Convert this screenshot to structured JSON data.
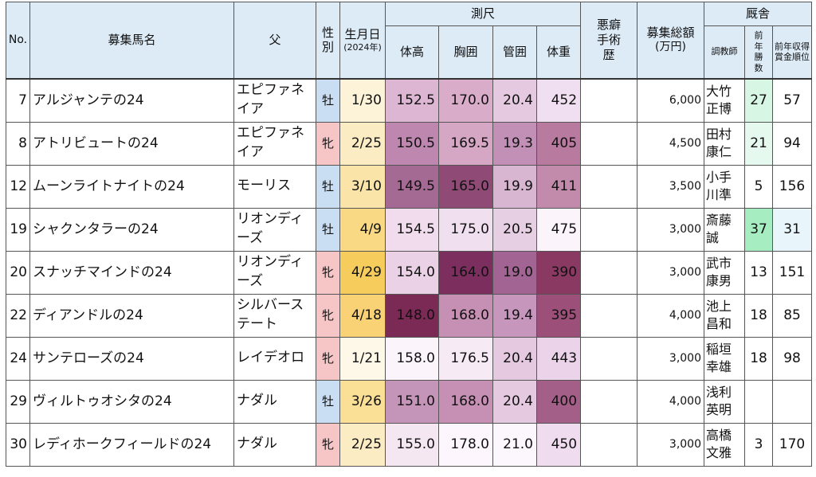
{
  "headers": {
    "no": "No.",
    "name": "募集馬名",
    "sire": "父",
    "sex": "性別",
    "birth": "生月日",
    "birth_sub": "(2024年)",
    "measure": "測尺",
    "height": "体高",
    "girth": "胸囲",
    "cannon": "管囲",
    "weight": "体重",
    "surgery": "悪癖手術歴",
    "fee": "募集総額",
    "fee_unit": "(万円)",
    "stable": "厩舎",
    "trainer": "調教師",
    "wins": "前年勝数",
    "rank": "前年収得賞金順位"
  },
  "colors": {
    "male_bg": "#c9def2",
    "female_bg": "#f6c6c7",
    "header_bg": "#ddebf7"
  },
  "rows": [
    {
      "no": "7",
      "name": "アルジャンテの24",
      "sire": "エピファネイア",
      "sex": "牡",
      "sex_type": "male",
      "birth": "1/30",
      "birth_bg": "#fdf3d8",
      "height": "152.5",
      "height_bg": "#dcb6d3",
      "girth": "170.0",
      "girth_bg": "#d9acc9",
      "cannon": "20.4",
      "cannon_bg": "#e4c9e0",
      "weight": "452",
      "weight_bg": "#f0dff0",
      "surgery": "",
      "fee": "6,000",
      "trainer": "大竹正博",
      "wins": "27",
      "wins_bg": "#d7f6e3",
      "rank": "57",
      "rank_bg": "#ffffff"
    },
    {
      "no": "8",
      "name": "アトリビュートの24",
      "sire": "エピファネイア",
      "sex": "牝",
      "sex_type": "female",
      "birth": "2/25",
      "birth_bg": "#fcecc3",
      "height": "150.5",
      "height_bg": "#bd87b0",
      "girth": "169.5",
      "girth_bg": "#d6a6c5",
      "cannon": "19.3",
      "cannon_bg": "#c290b6",
      "weight": "405",
      "weight_bg": "#b87a9f",
      "surgery": "",
      "fee": "4,500",
      "trainer": "田村康仁",
      "wins": "21",
      "wins_bg": "#e6f9ee",
      "rank": "94",
      "rank_bg": "#ffffff"
    },
    {
      "no": "12",
      "name": "ムーンライトナイトの24",
      "sire": "モーリス",
      "sex": "牡",
      "sex_type": "male",
      "birth": "3/10",
      "birth_bg": "#fbe4a8",
      "height": "149.5",
      "height_bg": "#a56a93",
      "girth": "165.0",
      "girth_bg": "#8f4b76",
      "cannon": "19.9",
      "cannon_bg": "#d8b6d2",
      "weight": "411",
      "weight_bg": "#c28aab",
      "surgery": "",
      "fee": "3,500",
      "trainer": "小手川準",
      "wins": "5",
      "wins_bg": "#ffffff",
      "rank": "156",
      "rank_bg": "#ffffff"
    },
    {
      "no": "19",
      "name": "シャクンタラーの24",
      "sire": "リオンディーズ",
      "sex": "牡",
      "sex_type": "male",
      "birth": "4/9",
      "birth_bg": "#f9d983",
      "height": "154.5",
      "height_bg": "#f0dcec",
      "girth": "175.0",
      "girth_bg": "#f0e0ef",
      "cannon": "20.5",
      "cannon_bg": "#e7cfe3",
      "weight": "475",
      "weight_bg": "#fbf4fb",
      "surgery": "",
      "fee": "3,000",
      "trainer": "斎藤誠",
      "wins": "37",
      "wins_bg": "#a7edc2",
      "rank": "31",
      "rank_bg": "#e8f6fc"
    },
    {
      "no": "20",
      "name": "スナッチマインドの24",
      "sire": "リオンディーズ",
      "sex": "牝",
      "sex_type": "female",
      "birth": "4/29",
      "birth_bg": "#f6cc5d",
      "height": "154.0",
      "height_bg": "#ead1e5",
      "girth": "164.0",
      "girth_bg": "#7c2f5f",
      "cannon": "19.0",
      "cannon_bg": "#a16493",
      "weight": "390",
      "weight_bg": "#8a3a62",
      "surgery": "",
      "fee": "3,000",
      "trainer": "武市康男",
      "wins": "13",
      "wins_bg": "#ffffff",
      "rank": "151",
      "rank_bg": "#ffffff"
    },
    {
      "no": "22",
      "name": "ディアンドルの24",
      "sire": "シルバーステート",
      "sex": "牝",
      "sex_type": "female",
      "birth": "4/18",
      "birth_bg": "#f8d274",
      "height": "148.0",
      "height_bg": "#7a2a55",
      "girth": "168.0",
      "girth_bg": "#c690b4",
      "cannon": "19.4",
      "cannon_bg": "#c696bc",
      "weight": "395",
      "weight_bg": "#9c4f78",
      "surgery": "",
      "fee": "4,000",
      "trainer": "池上昌和",
      "wins": "18",
      "wins_bg": "#ffffff",
      "rank": "85",
      "rank_bg": "#ffffff"
    },
    {
      "no": "24",
      "name": "サンテローズの24",
      "sire": "レイデオロ",
      "sex": "牝",
      "sex_type": "female",
      "birth": "1/21",
      "birth_bg": "#fef8e8",
      "height": "158.0",
      "height_bg": "#fcf4fb",
      "girth": "176.5",
      "girth_bg": "#f6eaf5",
      "cannon": "20.4",
      "cannon_bg": "#e4c9e0",
      "weight": "443",
      "weight_bg": "#ebd3e9",
      "surgery": "",
      "fee": "3,000",
      "trainer": "稲垣幸雄",
      "wins": "18",
      "wins_bg": "#ffffff",
      "rank": "98",
      "rank_bg": "#ffffff"
    },
    {
      "no": "29",
      "name": "ヴィルトゥオシタの24",
      "sire": "ナダル",
      "sex": "牡",
      "sex_type": "male",
      "birth": "3/26",
      "birth_bg": "#fadf97",
      "height": "151.0",
      "height_bg": "#c594b9",
      "girth": "168.0",
      "girth_bg": "#c690b4",
      "cannon": "20.4",
      "cannon_bg": "#e4c9e0",
      "weight": "400",
      "weight_bg": "#a45f88",
      "surgery": "",
      "fee": "4,000",
      "trainer": "浅利英明",
      "wins": "",
      "wins_bg": "#ffffff",
      "rank": "",
      "rank_bg": "#ffffff"
    },
    {
      "no": "30",
      "name": "レディホークフィールドの24",
      "sire": "ナダル",
      "sex": "牝",
      "sex_type": "female",
      "birth": "2/25",
      "birth_bg": "#fcecc3",
      "height": "155.0",
      "height_bg": "#f5e7f2",
      "girth": "178.0",
      "girth_bg": "#fdf7fd",
      "cannon": "21.0",
      "cannon_bg": "#fcf7fc",
      "weight": "450",
      "weight_bg": "#efdcee",
      "surgery": "",
      "fee": "3,000",
      "trainer": "高橋文雅",
      "wins": "3",
      "wins_bg": "#ffffff",
      "rank": "170",
      "rank_bg": "#ffffff"
    }
  ]
}
